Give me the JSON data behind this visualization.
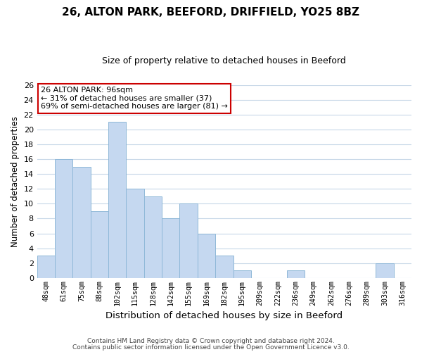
{
  "title": "26, ALTON PARK, BEEFORD, DRIFFIELD, YO25 8BZ",
  "subtitle": "Size of property relative to detached houses in Beeford",
  "xlabel": "Distribution of detached houses by size in Beeford",
  "ylabel": "Number of detached properties",
  "categories": [
    "48sqm",
    "61sqm",
    "75sqm",
    "88sqm",
    "102sqm",
    "115sqm",
    "128sqm",
    "142sqm",
    "155sqm",
    "169sqm",
    "182sqm",
    "195sqm",
    "209sqm",
    "222sqm",
    "236sqm",
    "249sqm",
    "262sqm",
    "276sqm",
    "289sqm",
    "303sqm",
    "316sqm"
  ],
  "values": [
    3,
    16,
    15,
    9,
    21,
    12,
    11,
    8,
    10,
    6,
    3,
    1,
    0,
    0,
    1,
    0,
    0,
    0,
    0,
    2,
    0
  ],
  "bar_color": "#c5d8f0",
  "bar_edge_color": "#8fb8d8",
  "annotation_title": "26 ALTON PARK: 96sqm",
  "annotation_line1": "← 31% of detached houses are smaller (37)",
  "annotation_line2": "69% of semi-detached houses are larger (81) →",
  "annotation_box_color": "#ffffff",
  "annotation_box_edge": "#cc0000",
  "ylim": [
    0,
    26
  ],
  "yticks": [
    0,
    2,
    4,
    6,
    8,
    10,
    12,
    14,
    16,
    18,
    20,
    22,
    24,
    26
  ],
  "footer1": "Contains HM Land Registry data © Crown copyright and database right 2024.",
  "footer2": "Contains public sector information licensed under the Open Government Licence v3.0.",
  "background_color": "#ffffff",
  "grid_color": "#c8d8e8",
  "title_fontsize": 11,
  "subtitle_fontsize": 9
}
